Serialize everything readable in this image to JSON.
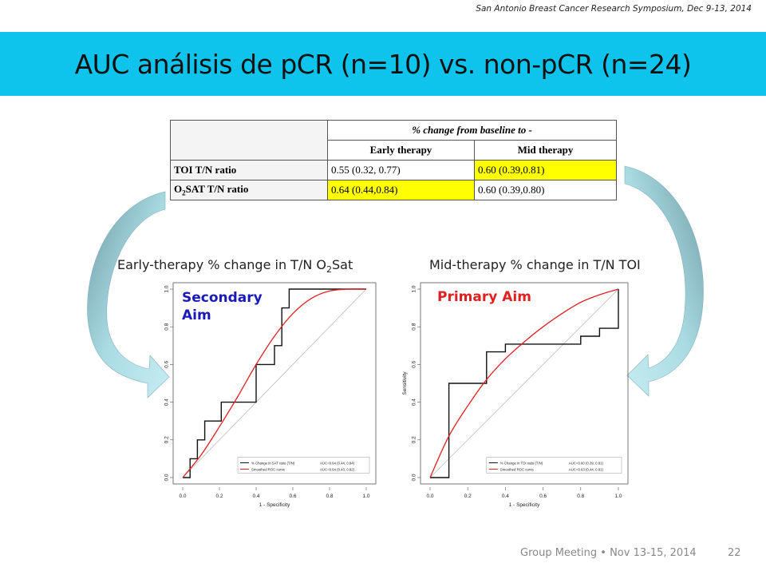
{
  "slide": {
    "conference": "San Antonio Breast Cancer Research Symposium, Dec 9-13, 2014",
    "title": "AUC análisis de  pCR (n=10) vs. non-pCR (n=24)",
    "footer": {
      "group": "Group Meeting",
      "separator": "•",
      "date": "Nov 13-15, 2014",
      "page": "22"
    },
    "colors": {
      "title_bar": "#0fc4ec",
      "highlight": "#ffff00",
      "secondary_aim": "#1a1ab8",
      "primary_aim": "#e02020",
      "smoothed_curve": "#e02020",
      "arrow": "#8fc9d2"
    }
  },
  "table": {
    "group_header": "% change from baseline to -",
    "columns": [
      "Early therapy",
      "Mid therapy"
    ],
    "rows": [
      {
        "label": "TOI T/N ratio",
        "early": "0.55 (0.32, 0.77)",
        "mid": "0.60 (0.39,0.81)",
        "highlight_early": false,
        "highlight_mid": true
      },
      {
        "label_main": "O",
        "label_sub": "2",
        "label_rest": "SAT T/N ratio",
        "early": "0.64 (0.44,0.84)",
        "mid": "0.60 (0.39,0.80)",
        "highlight_early": true,
        "highlight_mid": false
      }
    ]
  },
  "chart_data": [
    {
      "type": "line",
      "heading_main": "Early-therapy % change in T/N O",
      "heading_sub": "2",
      "heading_rest": "Sat",
      "aim_line1": "Secondary",
      "aim_line2": "Aim",
      "xlabel": "1 - Specificity",
      "ylabel": "",
      "xlim": [
        0,
        1
      ],
      "ylim": [
        0,
        1
      ],
      "ticks": [
        "0.0",
        "0.2",
        "0.4",
        "0.6",
        "0.8",
        "1.0"
      ],
      "series": [
        {
          "name": "% Change in SAT ratio (T/N)",
          "auc": "AUC=0.64 (0.44, 0.84)",
          "style": "step",
          "x": [
            0,
            0.04,
            0.04,
            0.08,
            0.08,
            0.12,
            0.12,
            0.21,
            0.21,
            0.4,
            0.4,
            0.5,
            0.5,
            0.54,
            0.54,
            0.58,
            0.58,
            0.67,
            0.67,
            0.75,
            0.75,
            1.0
          ],
          "y": [
            0,
            0,
            0.1,
            0.1,
            0.2,
            0.2,
            0.3,
            0.3,
            0.4,
            0.4,
            0.6,
            0.6,
            0.7,
            0.7,
            0.9,
            0.9,
            1.0,
            1.0,
            1.0,
            1.0,
            1.0,
            1.0
          ]
        },
        {
          "name": "Smoothed ROC curve",
          "auc": "AUC=0.64 (0.43, 0.82)",
          "style": "smooth",
          "x": [
            0,
            0.1,
            0.2,
            0.3,
            0.4,
            0.5,
            0.6,
            0.7,
            0.8,
            0.9,
            1.0
          ],
          "y": [
            0,
            0.12,
            0.27,
            0.43,
            0.6,
            0.75,
            0.87,
            0.95,
            0.99,
            1.0,
            1.0
          ]
        }
      ]
    },
    {
      "type": "line",
      "heading_main": "Mid-therapy % change in T/N TOI",
      "aim_line1": "Primary Aim",
      "xlabel": "1 - Specificity",
      "ylabel": "Sensitivity",
      "xlim": [
        0,
        1
      ],
      "ylim": [
        0,
        1
      ],
      "ticks": [
        "0.0",
        "0.2",
        "0.4",
        "0.6",
        "0.8",
        "1.0"
      ],
      "series": [
        {
          "name": "% Change in TOI ratio (T/N)",
          "auc": "AUC=0.60 (0.39, 0.81)",
          "style": "step",
          "x": [
            0,
            0.1,
            0.1,
            0.3,
            0.3,
            0.4,
            0.4,
            0.8,
            0.8,
            0.9,
            0.9,
            1.0,
            1.0
          ],
          "y": [
            0,
            0,
            0.5,
            0.5,
            0.667,
            0.667,
            0.708,
            0.708,
            0.75,
            0.75,
            0.792,
            0.792,
            1.0
          ]
        },
        {
          "name": "Smoothed ROC curve",
          "auc": "AUC=0.63 (0.44, 0.81)",
          "style": "smooth",
          "x": [
            0,
            0.1,
            0.2,
            0.3,
            0.4,
            0.5,
            0.6,
            0.7,
            0.8,
            0.9,
            1.0
          ],
          "y": [
            0,
            0.22,
            0.38,
            0.52,
            0.63,
            0.72,
            0.8,
            0.87,
            0.93,
            0.97,
            1.0
          ]
        }
      ]
    }
  ]
}
